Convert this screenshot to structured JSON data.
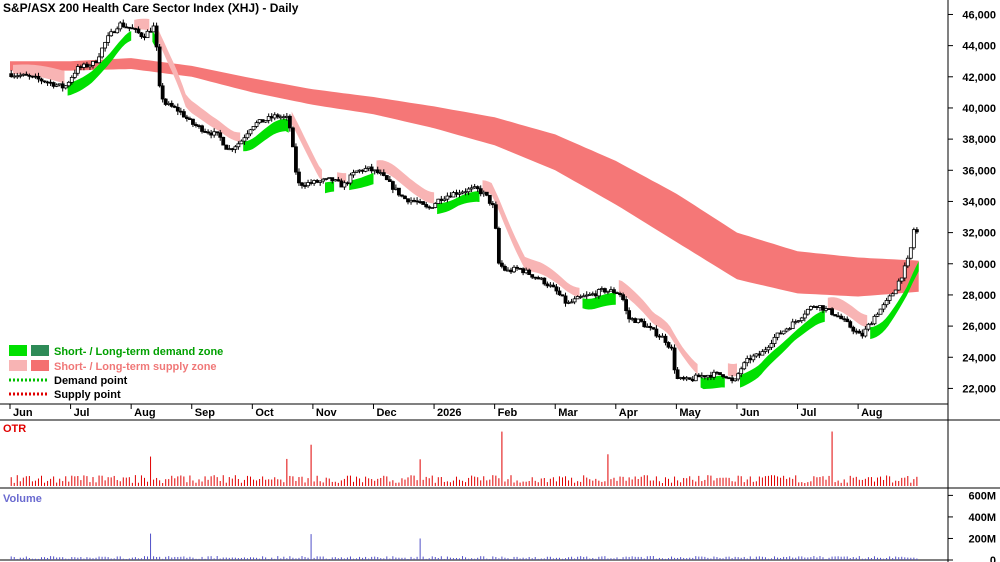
{
  "chart_data": {
    "type": "candlestick",
    "title": "S&P/ASX 200 Health Care Sector Index (XHJ) - Daily",
    "y_axis": {
      "min": 21000,
      "max": 46800,
      "position": "right",
      "ticks": [
        22000,
        24000,
        26000,
        28000,
        30000,
        32000,
        34000,
        36000,
        38000,
        40000,
        42000,
        44000,
        46000
      ],
      "tick_labels": [
        "22,000",
        "24,000",
        "26,000",
        "28,000",
        "30,000",
        "32,000",
        "34,000",
        "36,000",
        "38,000",
        "40,000",
        "42,000",
        "44,000",
        "46,000"
      ]
    },
    "x_axis": {
      "unit": "months",
      "range": [
        0,
        15.0
      ],
      "ticks": [
        0,
        1,
        2,
        3,
        4,
        5,
        6,
        7,
        8,
        9,
        10,
        11,
        12,
        13,
        14
      ],
      "tick_labels": [
        "Jun",
        "Jul",
        "Aug",
        "Sep",
        "Oct",
        "Nov",
        "Dec",
        "2026",
        "Feb",
        "Mar",
        "Apr",
        "May",
        "Jun",
        "Jul",
        "Aug"
      ]
    },
    "price_path": [
      [
        0.0,
        42200
      ],
      [
        0.3,
        42000
      ],
      [
        0.6,
        41700
      ],
      [
        0.9,
        41300
      ],
      [
        1.1,
        42500
      ],
      [
        1.4,
        42900
      ],
      [
        1.6,
        44400
      ],
      [
        1.8,
        45400
      ],
      [
        2.0,
        45100
      ],
      [
        2.2,
        44600
      ],
      [
        2.4,
        45300
      ],
      [
        2.45,
        41500
      ],
      [
        2.55,
        40300
      ],
      [
        2.8,
        39800
      ],
      [
        3.0,
        39000
      ],
      [
        3.2,
        38600
      ],
      [
        3.45,
        38200
      ],
      [
        3.6,
        37300
      ],
      [
        3.8,
        37800
      ],
      [
        4.0,
        38900
      ],
      [
        4.2,
        39200
      ],
      [
        4.4,
        39500
      ],
      [
        4.6,
        39300
      ],
      [
        4.75,
        35100
      ],
      [
        5.0,
        35200
      ],
      [
        5.3,
        35400
      ],
      [
        5.5,
        35000
      ],
      [
        5.7,
        35900
      ],
      [
        5.9,
        36100
      ],
      [
        6.1,
        35800
      ],
      [
        6.3,
        35000
      ],
      [
        6.5,
        34200
      ],
      [
        6.7,
        34000
      ],
      [
        6.9,
        33500
      ],
      [
        7.1,
        34200
      ],
      [
        7.3,
        34500
      ],
      [
        7.5,
        34700
      ],
      [
        7.7,
        34800
      ],
      [
        7.85,
        34400
      ],
      [
        8.0,
        33500
      ],
      [
        8.05,
        30100
      ],
      [
        8.2,
        29500
      ],
      [
        8.4,
        29700
      ],
      [
        8.6,
        29300
      ],
      [
        8.8,
        28900
      ],
      [
        9.0,
        28300
      ],
      [
        9.2,
        27400
      ],
      [
        9.4,
        27800
      ],
      [
        9.6,
        28000
      ],
      [
        9.8,
        28300
      ],
      [
        10.0,
        28200
      ],
      [
        10.1,
        28000
      ],
      [
        10.2,
        26500
      ],
      [
        10.4,
        26300
      ],
      [
        10.6,
        25700
      ],
      [
        10.8,
        25200
      ],
      [
        10.92,
        24500
      ],
      [
        11.0,
        22600
      ],
      [
        11.2,
        22500
      ],
      [
        11.4,
        22800
      ],
      [
        11.6,
        22900
      ],
      [
        11.8,
        22900
      ],
      [
        11.95,
        22300
      ],
      [
        12.05,
        23200
      ],
      [
        12.2,
        23900
      ],
      [
        12.4,
        24200
      ],
      [
        12.6,
        25200
      ],
      [
        12.8,
        25800
      ],
      [
        13.0,
        26400
      ],
      [
        13.15,
        27000
      ],
      [
        13.3,
        27400
      ],
      [
        13.5,
        27000
      ],
      [
        13.65,
        26700
      ],
      [
        13.8,
        26200
      ],
      [
        13.95,
        25700
      ],
      [
        14.05,
        25300
      ],
      [
        14.15,
        25900
      ],
      [
        14.3,
        26800
      ],
      [
        14.45,
        27400
      ],
      [
        14.6,
        28300
      ],
      [
        14.75,
        29500
      ],
      [
        14.85,
        30500
      ],
      [
        14.92,
        32200
      ],
      [
        15.0,
        31900
      ]
    ],
    "overlays": [
      {
        "name": "Short- / Long-term demand zone",
        "color": "#00e000",
        "dark_color": "#2e8b57"
      },
      {
        "name": "Short- / Long-term supply zone",
        "color": "#f8b4b4",
        "dark_color": "#f47070"
      },
      {
        "name": "Demand point",
        "color": "#00c000",
        "style": "dotted"
      },
      {
        "name": "Supply point",
        "color": "#e00000",
        "style": "dotted"
      }
    ],
    "long_term_supply_zone": {
      "x": [
        0,
        1,
        2,
        3,
        4,
        5,
        6,
        7,
        8,
        9,
        10,
        11,
        12,
        13,
        14,
        15
      ],
      "upper": [
        43000,
        43000,
        43200,
        42700,
        41900,
        41200,
        40700,
        40100,
        39400,
        38300,
        36600,
        34500,
        32000,
        30800,
        30400,
        30200
      ],
      "lower": [
        42400,
        42400,
        42500,
        42000,
        41000,
        40200,
        39600,
        38700,
        37600,
        36000,
        33800,
        31400,
        29000,
        28100,
        27900,
        28200
      ]
    },
    "panels": [
      {
        "name": "OTR",
        "type": "bar",
        "color": "#e00000",
        "baseline_label": ""
      },
      {
        "name": "Volume",
        "type": "bar",
        "color": "#5050c8",
        "ticks": [
          "0",
          "200M",
          "400M",
          "600M"
        ],
        "tick_values": [
          0,
          200,
          400,
          600
        ],
        "unit": "M"
      }
    ]
  }
}
